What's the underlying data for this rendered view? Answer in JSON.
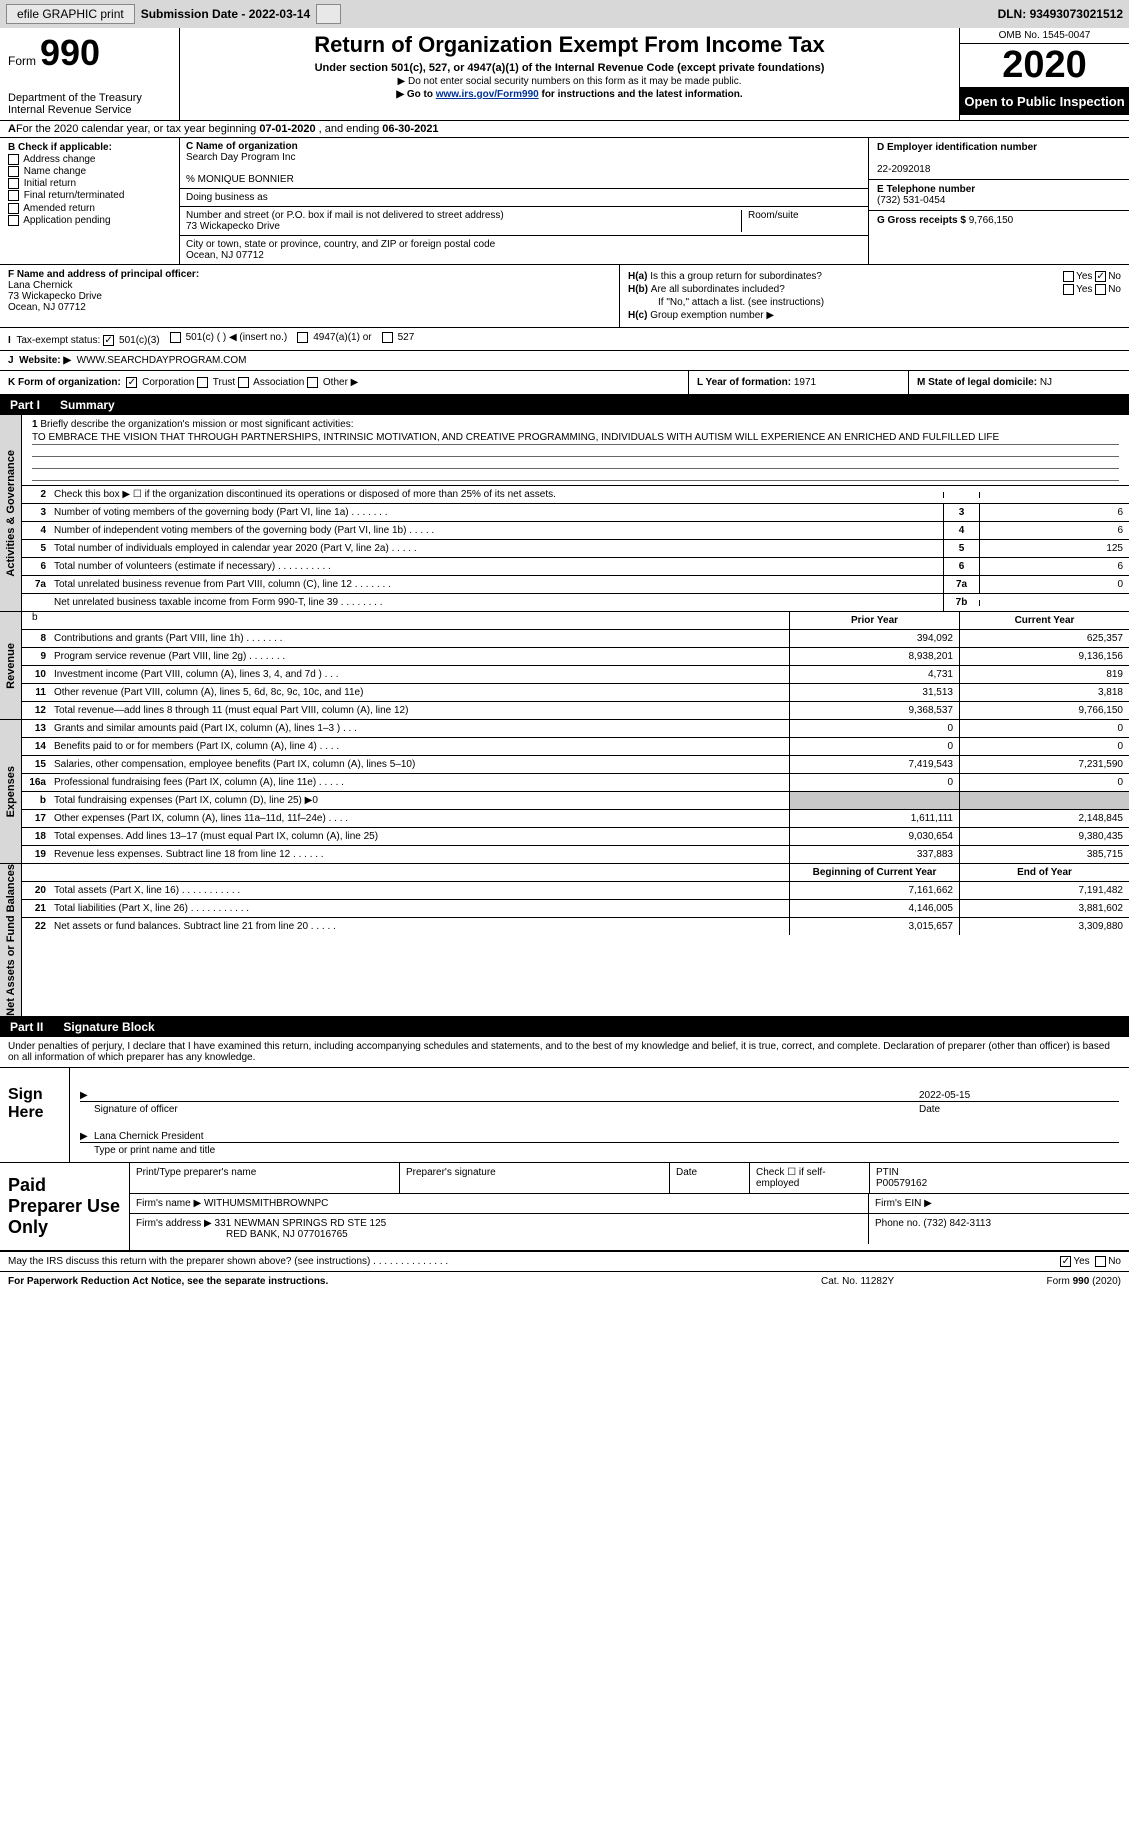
{
  "topbar": {
    "efile": "efile GRAPHIC print",
    "submission_label": "Submission Date - ",
    "submission_date": "2022-03-14",
    "dln_label": "DLN: ",
    "dln": "93493073021512"
  },
  "header": {
    "form_word": "Form",
    "form_num": "990",
    "dept": "Department of the Treasury\nInternal Revenue Service",
    "title": "Return of Organization Exempt From Income Tax",
    "subtitle": "Under section 501(c), 527, or 4947(a)(1) of the Internal Revenue Code (except private foundations)",
    "note1": "▶ Do not enter social security numbers on this form as it may be made public.",
    "note2_pre": "▶ Go to ",
    "note2_link": "www.irs.gov/Form990",
    "note2_post": " for instructions and the latest information.",
    "omb": "OMB No. 1545-0047",
    "year": "2020",
    "inspect": "Open to Public Inspection"
  },
  "row_a": {
    "pre": "A",
    "text": "For the 2020 calendar year, or tax year beginning ",
    "begin": "07-01-2020",
    "mid": " , and ending ",
    "end": "06-30-2021"
  },
  "col_b": {
    "label": "B Check if applicable:",
    "opts": [
      "Address change",
      "Name change",
      "Initial return",
      "Final return/terminated",
      "Amended return",
      "Application pending"
    ]
  },
  "col_c": {
    "name_label": "C Name of organization",
    "name": "Search Day Program Inc",
    "care_of": "% MONIQUE BONNIER",
    "dba_label": "Doing business as",
    "addr_label": "Number and street (or P.O. box if mail is not delivered to street address)",
    "room_label": "Room/suite",
    "addr": "73 Wickapecko Drive",
    "city_label": "City or town, state or province, country, and ZIP or foreign postal code",
    "city": "Ocean, NJ  07712"
  },
  "col_d": {
    "ein_label": "D Employer identification number",
    "ein": "22-2092018",
    "phone_label": "E Telephone number",
    "phone": "(732) 531-0454",
    "gross_label": "G Gross receipts $ ",
    "gross": "9,766,150"
  },
  "col_f": {
    "label": "F Name and address of principal officer:",
    "name": "Lana Chernick",
    "addr1": "73 Wickapecko Drive",
    "addr2": "Ocean, NJ  07712"
  },
  "col_h": {
    "ha_label": "H(a)",
    "ha_text": "Is this a group return for subordinates?",
    "ha_no_checked": true,
    "hb_label": "H(b)",
    "hb_text": "Are all subordinates included?",
    "hb_note": "If \"No,\" attach a list. (see instructions)",
    "hc_label": "H(c)",
    "hc_text": "Group exemption number ▶"
  },
  "row_i": {
    "label": "I",
    "text": "Tax-exempt status:",
    "opts": [
      "501(c)(3)",
      "501(c) (  ) ◀ (insert no.)",
      "4947(a)(1) or",
      "527"
    ],
    "checked_index": 0
  },
  "row_j": {
    "label": "J",
    "text": "Website: ▶",
    "value": "WWW.SEARCHDAYPROGRAM.COM"
  },
  "row_k": {
    "k_label": "K Form of organization:",
    "k_opts": [
      "Corporation",
      "Trust",
      "Association",
      "Other ▶"
    ],
    "k_checked_index": 0,
    "l_label": "L Year of formation: ",
    "l_value": "1971",
    "m_label": "M State of legal domicile: ",
    "m_value": "NJ"
  },
  "part1": {
    "label": "Part I",
    "title": "Summary"
  },
  "summary1": {
    "num": "1",
    "label": "Briefly describe the organization's mission or most significant activities:",
    "mission": "TO EMBRACE THE VISION THAT THROUGH PARTNERSHIPS, INTRINSIC MOTIVATION, AND CREATIVE PROGRAMMING, INDIVIDUALS WITH AUTISM WILL EXPERIENCE AN ENRICHED AND FULFILLED LIFE"
  },
  "governance_lines": [
    {
      "num": "2",
      "txt": "Check this box ▶ ☐ if the organization discontinued its operations or disposed of more than 25% of its net assets.",
      "box": "",
      "val": ""
    },
    {
      "num": "3",
      "txt": "Number of voting members of the governing body (Part VI, line 1a)   .    .    .    .    .    .    .",
      "box": "3",
      "val": "6"
    },
    {
      "num": "4",
      "txt": "Number of independent voting members of the governing body (Part VI, line 1b)   .    .    .    .    .",
      "box": "4",
      "val": "6"
    },
    {
      "num": "5",
      "txt": "Total number of individuals employed in calendar year 2020 (Part V, line 2a)   .    .    .    .    .",
      "box": "5",
      "val": "125"
    },
    {
      "num": "6",
      "txt": "Total number of volunteers (estimate if necessary)   .    .    .    .    .    .    .    .    .    .",
      "box": "6",
      "val": "6"
    },
    {
      "num": "7a",
      "txt": "Total unrelated business revenue from Part VIII, column (C), line 12   .    .    .    .    .    .    .",
      "box": "7a",
      "val": "0"
    },
    {
      "num": "",
      "txt": "Net unrelated business taxable income from Form 990-T, line 39   .    .    .    .    .    .    .    .",
      "box": "7b",
      "val": ""
    }
  ],
  "two_col_hdr": {
    "prior": "Prior Year",
    "current": "Current Year"
  },
  "revenue_lines": [
    {
      "num": "8",
      "txt": "Contributions and grants (Part VIII, line 1h)   .    .    .    .    .    .    .",
      "prior": "394,092",
      "current": "625,357"
    },
    {
      "num": "9",
      "txt": "Program service revenue (Part VIII, line 2g)   .    .    .    .    .    .    .",
      "prior": "8,938,201",
      "current": "9,136,156"
    },
    {
      "num": "10",
      "txt": "Investment income (Part VIII, column (A), lines 3, 4, and 7d )   .    .    .",
      "prior": "4,731",
      "current": "819"
    },
    {
      "num": "11",
      "txt": "Other revenue (Part VIII, column (A), lines 5, 6d, 8c, 9c, 10c, and 11e)",
      "prior": "31,513",
      "current": "3,818"
    },
    {
      "num": "12",
      "txt": "Total revenue—add lines 8 through 11 (must equal Part VIII, column (A), line 12)",
      "prior": "9,368,537",
      "current": "9,766,150"
    }
  ],
  "expense_lines": [
    {
      "num": "13",
      "txt": "Grants and similar amounts paid (Part IX, column (A), lines 1–3 )   .    .    .",
      "prior": "0",
      "current": "0"
    },
    {
      "num": "14",
      "txt": "Benefits paid to or for members (Part IX, column (A), line 4)   .    .    .    .",
      "prior": "0",
      "current": "0"
    },
    {
      "num": "15",
      "txt": "Salaries, other compensation, employee benefits (Part IX, column (A), lines 5–10)",
      "prior": "7,419,543",
      "current": "7,231,590"
    },
    {
      "num": "16a",
      "txt": "Professional fundraising fees (Part IX, column (A), line 11e)   .    .    .    .    .",
      "prior": "0",
      "current": "0"
    },
    {
      "num": "b",
      "txt": "Total fundraising expenses (Part IX, column (D), line 25) ▶0",
      "prior": "",
      "current": "",
      "shade": true
    },
    {
      "num": "17",
      "txt": "Other expenses (Part IX, column (A), lines 11a–11d, 11f–24e)   .    .    .    .",
      "prior": "1,611,111",
      "current": "2,148,845"
    },
    {
      "num": "18",
      "txt": "Total expenses. Add lines 13–17 (must equal Part IX, column (A), line 25)",
      "prior": "9,030,654",
      "current": "9,380,435"
    },
    {
      "num": "19",
      "txt": "Revenue less expenses. Subtract line 18 from line 12   .    .    .    .    .    .",
      "prior": "337,883",
      "current": "385,715"
    }
  ],
  "netassets_hdr": {
    "begin": "Beginning of Current Year",
    "end": "End of Year"
  },
  "netassets_lines": [
    {
      "num": "20",
      "txt": "Total assets (Part X, line 16)   .    .    .    .    .    .    .    .    .    .    .",
      "prior": "7,161,662",
      "current": "7,191,482"
    },
    {
      "num": "21",
      "txt": "Total liabilities (Part X, line 26)   .    .    .    .    .    .    .    .    .    .    .",
      "prior": "4,146,005",
      "current": "3,881,602"
    },
    {
      "num": "22",
      "txt": "Net assets or fund balances. Subtract line 21 from line 20   .    .    .    .    .",
      "prior": "3,015,657",
      "current": "3,309,880"
    }
  ],
  "vtabs": {
    "gov": "Activities & Governance",
    "rev": "Revenue",
    "exp": "Expenses",
    "net": "Net Assets or Fund Balances"
  },
  "part2": {
    "label": "Part II",
    "title": "Signature Block"
  },
  "sig_intro": "Under penalties of perjury, I declare that I have examined this return, including accompanying schedules and statements, and to the best of my knowledge and belief, it is true, correct, and complete. Declaration of preparer (other than officer) is based on all information of which preparer has any knowledge.",
  "sign_here": {
    "label": "Sign Here",
    "sig_officer_label": "Signature of officer",
    "date_label": "Date",
    "date": "2022-05-15",
    "name": "Lana Chernick  President",
    "name_label": "Type or print name and title"
  },
  "paid": {
    "label": "Paid Preparer Use Only",
    "r1": {
      "c1_label": "Print/Type preparer's name",
      "c2_label": "Preparer's signature",
      "c3_label": "Date",
      "c4_label": "Check ☐ if self-employed",
      "c5_label": "PTIN",
      "c5_val": "P00579162"
    },
    "r2": {
      "c1_label": "Firm's name   ▶",
      "c1_val": "WITHUMSMITHBROWNPC",
      "c2_label": "Firm's EIN ▶"
    },
    "r3": {
      "c1_label": "Firm's address ▶",
      "c1_val": "331 NEWMAN SPRINGS RD STE 125",
      "c1_val2": "RED BANK, NJ  077016765",
      "c2_label": "Phone no. ",
      "c2_val": "(732) 842-3113"
    }
  },
  "discuss": {
    "q": "May the IRS discuss this return with the preparer shown above? (see instructions)   .    .    .    .    .    .    .    .    .    .    .    .    .    .",
    "yes_checked": true
  },
  "footer": {
    "left": "For Paperwork Reduction Act Notice, see the separate instructions.",
    "mid": "Cat. No. 11282Y",
    "right": "Form 990 (2020)"
  }
}
